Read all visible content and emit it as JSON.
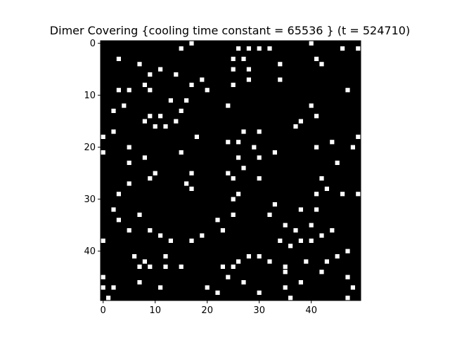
{
  "chart_data": {
    "type": "heatmap",
    "title": "Dimer Covering {cooling time constant = 65536 } (t = 524710)",
    "xlabel": "",
    "ylabel": "",
    "grid_size": 50,
    "xlim": [
      0,
      49
    ],
    "ylim": [
      49,
      0
    ],
    "x_ticks": [
      0,
      10,
      20,
      30,
      40
    ],
    "y_ticks": [
      0,
      10,
      20,
      30,
      40
    ],
    "colormap": {
      "empty": "#000000",
      "filled": "#ffffff"
    },
    "grid": false,
    "legend": "none",
    "filled_cells": [
      [
        15,
        1
      ],
      [
        17,
        0
      ],
      [
        26,
        1
      ],
      [
        28,
        1
      ],
      [
        30,
        1
      ],
      [
        32,
        1
      ],
      [
        40,
        0
      ],
      [
        46,
        1
      ],
      [
        49,
        1
      ],
      [
        3,
        3
      ],
      [
        25,
        3
      ],
      [
        27,
        3
      ],
      [
        41,
        3
      ],
      [
        7,
        4
      ],
      [
        34,
        4
      ],
      [
        42,
        4
      ],
      [
        9,
        6
      ],
      [
        11,
        5
      ],
      [
        14,
        6
      ],
      [
        25,
        5
      ],
      [
        28,
        5
      ],
      [
        8,
        8
      ],
      [
        17,
        8
      ],
      [
        19,
        7
      ],
      [
        25,
        8
      ],
      [
        28,
        7
      ],
      [
        34,
        7
      ],
      [
        3,
        9
      ],
      [
        5,
        9
      ],
      [
        9,
        9
      ],
      [
        20,
        9
      ],
      [
        47,
        9
      ],
      [
        13,
        11
      ],
      [
        16,
        11
      ],
      [
        4,
        12
      ],
      [
        24,
        12
      ],
      [
        40,
        12
      ],
      [
        2,
        13
      ],
      [
        15,
        13
      ],
      [
        8,
        15
      ],
      [
        9,
        14
      ],
      [
        11,
        14
      ],
      [
        14,
        15
      ],
      [
        38,
        15
      ],
      [
        41,
        14
      ],
      [
        10,
        16
      ],
      [
        12,
        16
      ],
      [
        37,
        16
      ],
      [
        2,
        17
      ],
      [
        27,
        17
      ],
      [
        30,
        17
      ],
      [
        0,
        18
      ],
      [
        18,
        18
      ],
      [
        49,
        18
      ],
      [
        24,
        19
      ],
      [
        26,
        19
      ],
      [
        44,
        19
      ],
      [
        5,
        20
      ],
      [
        29,
        20
      ],
      [
        41,
        20
      ],
      [
        48,
        20
      ],
      [
        0,
        21
      ],
      [
        15,
        21
      ],
      [
        33,
        21
      ],
      [
        8,
        22
      ],
      [
        26,
        22
      ],
      [
        30,
        22
      ],
      [
        5,
        23
      ],
      [
        45,
        23
      ],
      [
        27,
        24
      ],
      [
        10,
        25
      ],
      [
        17,
        25
      ],
      [
        24,
        25
      ],
      [
        9,
        26
      ],
      [
        25,
        26
      ],
      [
        30,
        26
      ],
      [
        42,
        26
      ],
      [
        5,
        27
      ],
      [
        16,
        27
      ],
      [
        17,
        28
      ],
      [
        43,
        28
      ],
      [
        3,
        29
      ],
      [
        26,
        29
      ],
      [
        41,
        29
      ],
      [
        46,
        29
      ],
      [
        49,
        29
      ],
      [
        25,
        30
      ],
      [
        33,
        31
      ],
      [
        2,
        32
      ],
      [
        38,
        32
      ],
      [
        41,
        32
      ],
      [
        7,
        33
      ],
      [
        25,
        33
      ],
      [
        32,
        33
      ],
      [
        3,
        34
      ],
      [
        22,
        34
      ],
      [
        5,
        36
      ],
      [
        9,
        36
      ],
      [
        23,
        36
      ],
      [
        35,
        35
      ],
      [
        37,
        36
      ],
      [
        40,
        35
      ],
      [
        44,
        36
      ],
      [
        11,
        37
      ],
      [
        19,
        37
      ],
      [
        42,
        37
      ],
      [
        0,
        38
      ],
      [
        13,
        38
      ],
      [
        17,
        38
      ],
      [
        34,
        38
      ],
      [
        38,
        38
      ],
      [
        40,
        38
      ],
      [
        36,
        39
      ],
      [
        47,
        40
      ],
      [
        6,
        41
      ],
      [
        12,
        41
      ],
      [
        28,
        41
      ],
      [
        30,
        41
      ],
      [
        45,
        41
      ],
      [
        8,
        42
      ],
      [
        32,
        42
      ],
      [
        39,
        42
      ],
      [
        43,
        42
      ],
      [
        7,
        43
      ],
      [
        9,
        43
      ],
      [
        12,
        43
      ],
      [
        15,
        43
      ],
      [
        23,
        43
      ],
      [
        25,
        43
      ],
      [
        26,
        42
      ],
      [
        35,
        43
      ],
      [
        42,
        44
      ],
      [
        35,
        44
      ],
      [
        0,
        45
      ],
      [
        24,
        45
      ],
      [
        47,
        45
      ],
      [
        7,
        46
      ],
      [
        27,
        46
      ],
      [
        38,
        46
      ],
      [
        0,
        47
      ],
      [
        2,
        47
      ],
      [
        11,
        47
      ],
      [
        20,
        47
      ],
      [
        35,
        47
      ],
      [
        48,
        47
      ],
      [
        22,
        48
      ],
      [
        30,
        48
      ],
      [
        1,
        49
      ],
      [
        36,
        49
      ],
      [
        47,
        49
      ]
    ]
  }
}
